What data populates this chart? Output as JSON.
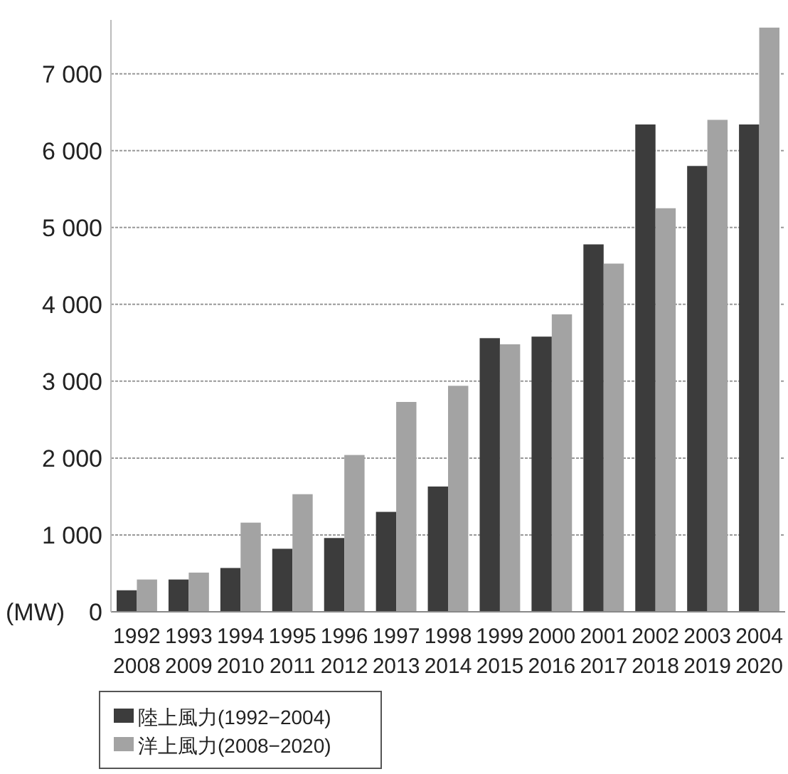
{
  "chart_data": {
    "type": "bar",
    "categories": [
      "1992\n2008",
      "1993\n2009",
      "1994\n2010",
      "1995\n2011",
      "1996\n2012",
      "1997\n2013",
      "1998\n2014",
      "1999\n2015",
      "2000\n2016",
      "2001\n2017",
      "2002\n2018",
      "2003\n2019",
      "2004\n2020"
    ],
    "series": [
      {
        "name": "陸上風力(1992−2004)",
        "color": "#3c3c3c",
        "values": [
          280,
          420,
          570,
          820,
          960,
          1300,
          1630,
          3560,
          3580,
          4780,
          6340,
          5800,
          6340
        ]
      },
      {
        "name": "洋上風力(2008−2020)",
        "color": "#a3a3a3",
        "values": [
          420,
          510,
          1160,
          1530,
          2040,
          2730,
          2940,
          3480,
          3870,
          4530,
          5250,
          6400,
          7600
        ]
      }
    ],
    "ylabel": "(MW)",
    "ylim": [
      0,
      7700
    ],
    "yticks": [
      0,
      {
        "value": 1000,
        "label": "1 000"
      },
      {
        "value": 2000,
        "label": "2 000"
      },
      {
        "value": 3000,
        "label": "3 000"
      },
      {
        "value": 4000,
        "label": "4 000"
      },
      {
        "value": 5000,
        "label": "5 000"
      },
      {
        "value": 6000,
        "label": "6 000"
      },
      {
        "value": 7000,
        "label": "7 000"
      }
    ],
    "grid": "y",
    "legend": "bottom left"
  }
}
